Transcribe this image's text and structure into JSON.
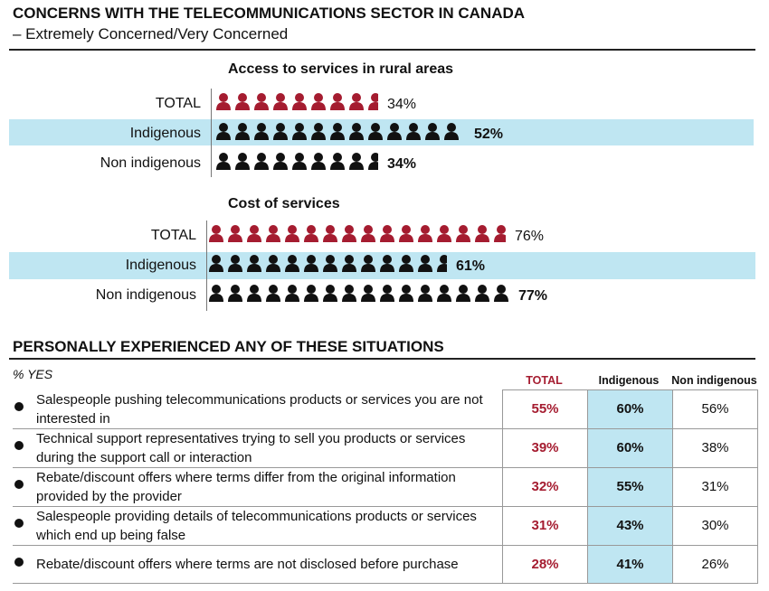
{
  "title": "CONCERNS WITH THE TELECOMMUNICATIONS SECTOR IN CANADA",
  "subtitle": "– Extremely Concerned/Very Concerned",
  "colors": {
    "total": "#a51c30",
    "group": "#111111",
    "highlight": "#bfe6f2"
  },
  "chart_data": [
    {
      "type": "bar",
      "title": "Access to services in rural areas",
      "categories": [
        "TOTAL",
        "Indigenous",
        "Non indigenous"
      ],
      "values": [
        34,
        52,
        34
      ],
      "value_labels": [
        "34%",
        "52%",
        "34%"
      ],
      "unit": "%"
    },
    {
      "type": "bar",
      "title": "Cost of services",
      "categories": [
        "TOTAL",
        "Indigenous",
        "Non indigenous"
      ],
      "values": [
        76,
        61,
        77
      ],
      "value_labels": [
        "76%",
        "61%",
        "77%"
      ],
      "unit": "%"
    },
    {
      "type": "table",
      "title": "PERSONALLY EXPERIENCED ANY OF THESE SITUATIONS",
      "subtitle": "% YES",
      "columns": [
        "TOTAL",
        "Indigenous",
        "Non indigenous"
      ],
      "rows": [
        {
          "statement": "Salespeople pushing telecommunications products or services you are not interested in",
          "values": [
            "55%",
            "60%",
            "56%"
          ]
        },
        {
          "statement": "Technical support representatives trying to sell you products or services during the support call or interaction",
          "values": [
            "39%",
            "60%",
            "38%"
          ]
        },
        {
          "statement": "Rebate/discount offers where terms differ from the original information provided by the provider",
          "values": [
            "32%",
            "55%",
            "31%"
          ]
        },
        {
          "statement": "Salespeople providing details of telecommunications products or services which end up being false",
          "values": [
            "31%",
            "43%",
            "30%"
          ]
        },
        {
          "statement": "Rebate/discount offers where terms are not disclosed before purchase",
          "values": [
            "28%",
            "41%",
            "26%"
          ]
        }
      ]
    }
  ]
}
